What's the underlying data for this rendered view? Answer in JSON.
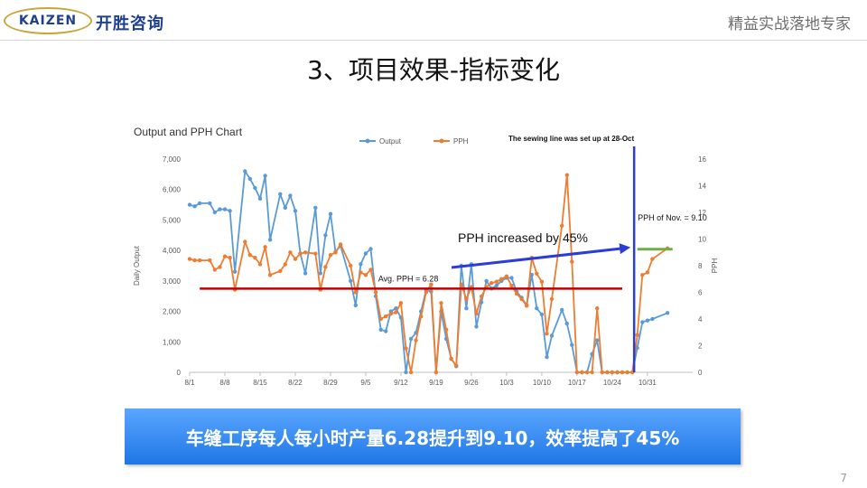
{
  "header": {
    "logo_en": "KAIZEN",
    "logo_cn": "开胜咨询",
    "tagline": "精益实战落地专家"
  },
  "slide": {
    "title": "3、项目效果-指标变化",
    "banner": "车缝工序每人每小时产量6.28提升到9.10，效率提高了45%",
    "page_number": "7"
  },
  "colors": {
    "output": "#5b9bd5",
    "pph": "#ed7d31",
    "avg_line": "#c00000",
    "nov_line": "#70ad47",
    "arrow": "#2b3cd8",
    "banner": "#2f86f0"
  },
  "chart_data": {
    "type": "line",
    "title": "Output and PPH Chart",
    "ylabel": "Daily Output",
    "y2label": "PPH",
    "ylim": [
      0,
      7000
    ],
    "y2lim": [
      0,
      16
    ],
    "yticks": [
      "0",
      "1,000",
      "2,000",
      "3,000",
      "4,000",
      "5,000",
      "6,000",
      "7,000"
    ],
    "y2ticks": [
      "0",
      "2",
      "4",
      "6",
      "8",
      "10",
      "12",
      "14",
      "16"
    ],
    "x": [
      1,
      2,
      3,
      4,
      5,
      6,
      7,
      8,
      9,
      10,
      11,
      12,
      13,
      14,
      15,
      16,
      17,
      18,
      19,
      20,
      21,
      22,
      23,
      24,
      25,
      26,
      27,
      28,
      29,
      30,
      31,
      32,
      33,
      34,
      35,
      36,
      37,
      38,
      39,
      40,
      41,
      42,
      43,
      44,
      45,
      46,
      47,
      48,
      49,
      50,
      51,
      52,
      53,
      54,
      55,
      56,
      57,
      58,
      59,
      60,
      61,
      62,
      63,
      64,
      65,
      66,
      67,
      68,
      69,
      70,
      71,
      72,
      73,
      74,
      75,
      76,
      77,
      78,
      79,
      80,
      81,
      82,
      83,
      84,
      85,
      86,
      87,
      88,
      89
    ],
    "xticks": [
      {
        "x": 1,
        "label": "8/1"
      },
      {
        "x": 8,
        "label": "8/8"
      },
      {
        "x": 15,
        "label": "8/15"
      },
      {
        "x": 22,
        "label": "8/22"
      },
      {
        "x": 29,
        "label": "8/29"
      },
      {
        "x": 36,
        "label": "9/5"
      },
      {
        "x": 43,
        "label": "9/12"
      },
      {
        "x": 50,
        "label": "9/19"
      },
      {
        "x": 57,
        "label": "9/26"
      },
      {
        "x": 64,
        "label": "10/3"
      },
      {
        "x": 71,
        "label": "10/10"
      },
      {
        "x": 78,
        "label": "10/17"
      },
      {
        "x": 85,
        "label": "10/24"
      },
      {
        "x": 92,
        "label": "10/31"
      }
    ],
    "xlim": [
      1,
      101
    ],
    "series": [
      {
        "name": "Output",
        "axis": "left",
        "points": [
          [
            1,
            5500
          ],
          [
            2,
            5450
          ],
          [
            3,
            5550
          ],
          [
            5,
            5550
          ],
          [
            6,
            5250
          ],
          [
            7,
            5350
          ],
          [
            8,
            5350
          ],
          [
            9,
            5300
          ],
          [
            10,
            3300
          ],
          [
            12,
            6600
          ],
          [
            13,
            6350
          ],
          [
            14,
            6050
          ],
          [
            15,
            5700
          ],
          [
            16,
            6450
          ],
          [
            17,
            4350
          ],
          [
            19,
            5850
          ],
          [
            20,
            5400
          ],
          [
            21,
            5800
          ],
          [
            22,
            5300
          ],
          [
            23,
            3900
          ],
          [
            24,
            3250
          ],
          [
            26,
            5400
          ],
          [
            27,
            3250
          ],
          [
            28,
            4500
          ],
          [
            29,
            5200
          ],
          [
            30,
            3950
          ],
          [
            31,
            4150
          ],
          [
            33,
            3000
          ],
          [
            34,
            2200
          ],
          [
            35,
            3550
          ],
          [
            36,
            3900
          ],
          [
            37,
            4050
          ],
          [
            38,
            2500
          ],
          [
            39,
            1400
          ],
          [
            40,
            1350
          ],
          [
            41,
            2000
          ],
          [
            42,
            2100
          ],
          [
            43,
            1800
          ],
          [
            44,
            0
          ],
          [
            45,
            1100
          ],
          [
            46,
            1300
          ],
          [
            47,
            2000
          ],
          [
            48,
            2700
          ],
          [
            49,
            2650
          ],
          [
            50,
            0
          ],
          [
            51,
            2000
          ],
          [
            52,
            1100
          ],
          [
            53,
            450
          ],
          [
            54,
            200
          ],
          [
            55,
            3500
          ],
          [
            56,
            2100
          ],
          [
            57,
            3550
          ],
          [
            58,
            1500
          ],
          [
            59,
            2300
          ],
          [
            60,
            3000
          ],
          [
            61,
            2750
          ],
          [
            62,
            2850
          ],
          [
            63,
            3000
          ],
          [
            64,
            3100
          ],
          [
            65,
            3100
          ],
          [
            66,
            2650
          ],
          [
            67,
            2450
          ],
          [
            68,
            2200
          ],
          [
            69,
            3200
          ],
          [
            70,
            2100
          ],
          [
            71,
            1900
          ],
          [
            72,
            500
          ],
          [
            73,
            1200
          ],
          [
            75,
            2050
          ],
          [
            76,
            1600
          ],
          [
            77,
            900
          ],
          [
            78,
            0
          ],
          [
            79,
            0
          ],
          [
            80,
            0
          ],
          [
            81,
            600
          ],
          [
            82,
            1050
          ],
          [
            83,
            0
          ],
          [
            84,
            0
          ],
          [
            85,
            0
          ],
          [
            86,
            0
          ],
          [
            87,
            0
          ],
          [
            88,
            0
          ],
          [
            89,
            0
          ],
          [
            90,
            800
          ],
          [
            91,
            1650
          ],
          [
            92,
            1700
          ],
          [
            93,
            1750
          ],
          [
            96,
            1950
          ]
        ]
      },
      {
        "name": "PPH",
        "axis": "right",
        "points": [
          [
            1,
            8.5
          ],
          [
            2,
            8.4
          ],
          [
            3,
            8.4
          ],
          [
            5,
            8.4
          ],
          [
            6,
            7.7
          ],
          [
            7,
            7.9
          ],
          [
            8,
            8.7
          ],
          [
            9,
            8.6
          ],
          [
            10,
            6.2
          ],
          [
            12,
            9.8
          ],
          [
            13,
            8.8
          ],
          [
            14,
            8.6
          ],
          [
            15,
            8.1
          ],
          [
            16,
            9.4
          ],
          [
            17,
            7.3
          ],
          [
            19,
            7.6
          ],
          [
            20,
            8.1
          ],
          [
            21,
            9.0
          ],
          [
            22,
            8.5
          ],
          [
            23,
            8.9
          ],
          [
            24,
            9.0
          ],
          [
            26,
            8.9
          ],
          [
            27,
            6.2
          ],
          [
            28,
            7.9
          ],
          [
            29,
            8.8
          ],
          [
            30,
            9.0
          ],
          [
            31,
            9.6
          ],
          [
            33,
            8.0
          ],
          [
            34,
            6.0
          ],
          [
            35,
            7.5
          ],
          [
            36,
            7.3
          ],
          [
            37,
            7.7
          ],
          [
            38,
            6.0
          ],
          [
            39,
            4.0
          ],
          [
            40,
            4.2
          ],
          [
            41,
            4.4
          ],
          [
            42,
            4.5
          ],
          [
            43,
            5.2
          ],
          [
            44,
            1.8
          ],
          [
            45,
            0
          ],
          [
            46,
            2.4
          ],
          [
            47,
            4.2
          ],
          [
            48,
            6.0
          ],
          [
            49,
            6.6
          ],
          [
            50,
            0
          ],
          [
            51,
            5.2
          ],
          [
            52,
            3.2
          ],
          [
            53,
            1.0
          ],
          [
            54,
            0.5
          ],
          [
            55,
            6.6
          ],
          [
            56,
            5.5
          ],
          [
            57,
            6.4
          ],
          [
            58,
            4.4
          ],
          [
            59,
            5.7
          ],
          [
            60,
            6.4
          ],
          [
            61,
            6.7
          ],
          [
            62,
            6.8
          ],
          [
            63,
            7.0
          ],
          [
            64,
            7.2
          ],
          [
            65,
            6.5
          ],
          [
            66,
            5.9
          ],
          [
            67,
            5.5
          ],
          [
            68,
            5.0
          ],
          [
            69,
            8.6
          ],
          [
            70,
            7.4
          ],
          [
            71,
            6.8
          ],
          [
            72,
            2.9
          ],
          [
            73,
            5.5
          ],
          [
            75,
            11.0
          ],
          [
            76,
            14.8
          ],
          [
            77,
            8.3
          ],
          [
            78,
            0
          ],
          [
            79,
            0
          ],
          [
            80,
            0
          ],
          [
            81,
            0
          ],
          [
            82,
            4.8
          ],
          [
            83,
            0
          ],
          [
            84,
            0
          ],
          [
            85,
            0
          ],
          [
            86,
            0
          ],
          [
            87,
            0
          ],
          [
            88,
            0
          ],
          [
            89,
            0
          ],
          [
            90,
            2.8
          ],
          [
            91,
            7.3
          ],
          [
            92,
            7.5
          ],
          [
            93,
            8.5
          ],
          [
            96,
            9.3
          ]
        ]
      }
    ],
    "legend": {
      "position": "top-center",
      "items": [
        "Output",
        "PPH"
      ]
    },
    "grid": false,
    "annotations": {
      "setup_note": "The sewing line was set up at 28-Oct",
      "avg_label": "Avg. PPH = 6.28",
      "avg_value": 6.28,
      "nov_label": "PPH of Nov. = 9.10",
      "nov_value": 9.1,
      "increase_label": "PPH increased by 45%",
      "setup_x": 89
    }
  }
}
